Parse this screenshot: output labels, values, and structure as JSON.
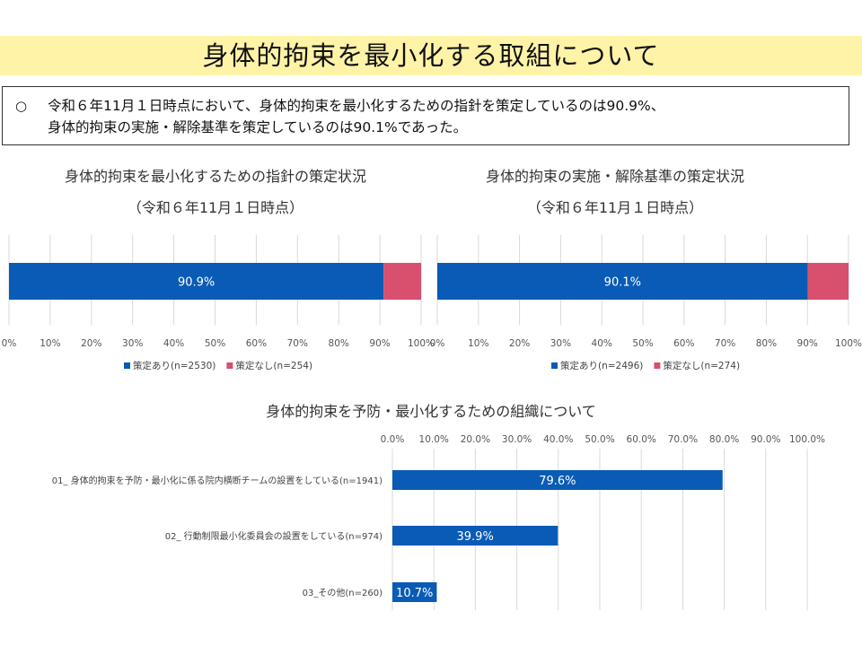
{
  "page": {
    "title": "身体的拘束を最小化する取組について",
    "summary_bullet": "○",
    "summary_line1": "令和６年11月１日時点において、身体的拘束を最小化するための指針を策定しているのは90.9%、",
    "summary_line2": "身体的拘束の実施・解除基準を策定しているのは90.1%であった。"
  },
  "colors": {
    "title_bg": "#fff3a8",
    "primary_bar": "#0a5bb5",
    "secondary_bar": "#d94f6e",
    "grid": "#d9d9d9"
  },
  "chart_data": [
    {
      "type": "bar",
      "orientation": "horizontal-stacked-100",
      "title": "身体的拘束を最小化するための指針の策定状況",
      "subtitle": "（令和６年11月１日時点）",
      "xlim": [
        0,
        100
      ],
      "ticks": [
        "0%",
        "10%",
        "20%",
        "30%",
        "40%",
        "50%",
        "60%",
        "70%",
        "80%",
        "90%",
        "100%"
      ],
      "series": [
        {
          "name": "策定あり(n=2530)",
          "values": [
            90.9
          ],
          "label": "90.9%",
          "color": "#0a5bb5"
        },
        {
          "name": "策定なし(n=254)",
          "values": [
            9.1
          ],
          "label": "",
          "color": "#d94f6e"
        }
      ],
      "grid": true,
      "legend": "bottom"
    },
    {
      "type": "bar",
      "orientation": "horizontal-stacked-100",
      "title": "身体的拘束の実施・解除基準の策定状況",
      "subtitle": "（令和６年11月１日時点）",
      "xlim": [
        0,
        100
      ],
      "ticks": [
        "0%",
        "10%",
        "20%",
        "30%",
        "40%",
        "50%",
        "60%",
        "70%",
        "80%",
        "90%",
        "100%"
      ],
      "series": [
        {
          "name": "策定あり(n=2496)",
          "values": [
            90.1
          ],
          "label": "90.1%",
          "color": "#0a5bb5"
        },
        {
          "name": "策定なし(n=274)",
          "values": [
            9.9
          ],
          "label": "",
          "color": "#d94f6e"
        }
      ],
      "grid": true,
      "legend": "bottom"
    },
    {
      "type": "bar",
      "orientation": "horizontal",
      "title": "身体的拘束を予防・最小化するための組織について",
      "xlim": [
        0,
        100
      ],
      "ticks": [
        "0.0%",
        "10.0%",
        "20.0%",
        "30.0%",
        "40.0%",
        "50.0%",
        "60.0%",
        "70.0%",
        "80.0%",
        "90.0%",
        "100.0%"
      ],
      "categories": [
        "01_ 身体的拘束を予防・最小化に係る院内横断チームの設置をしている(n=1941)",
        "02_ 行動制限最小化委員会の設置をしている(n=974)",
        "03_その他(n=260)"
      ],
      "values": [
        79.6,
        39.9,
        10.7
      ],
      "labels": [
        "79.6%",
        "39.9%",
        "10.7%"
      ],
      "color": "#0a5bb5",
      "grid": true
    }
  ]
}
